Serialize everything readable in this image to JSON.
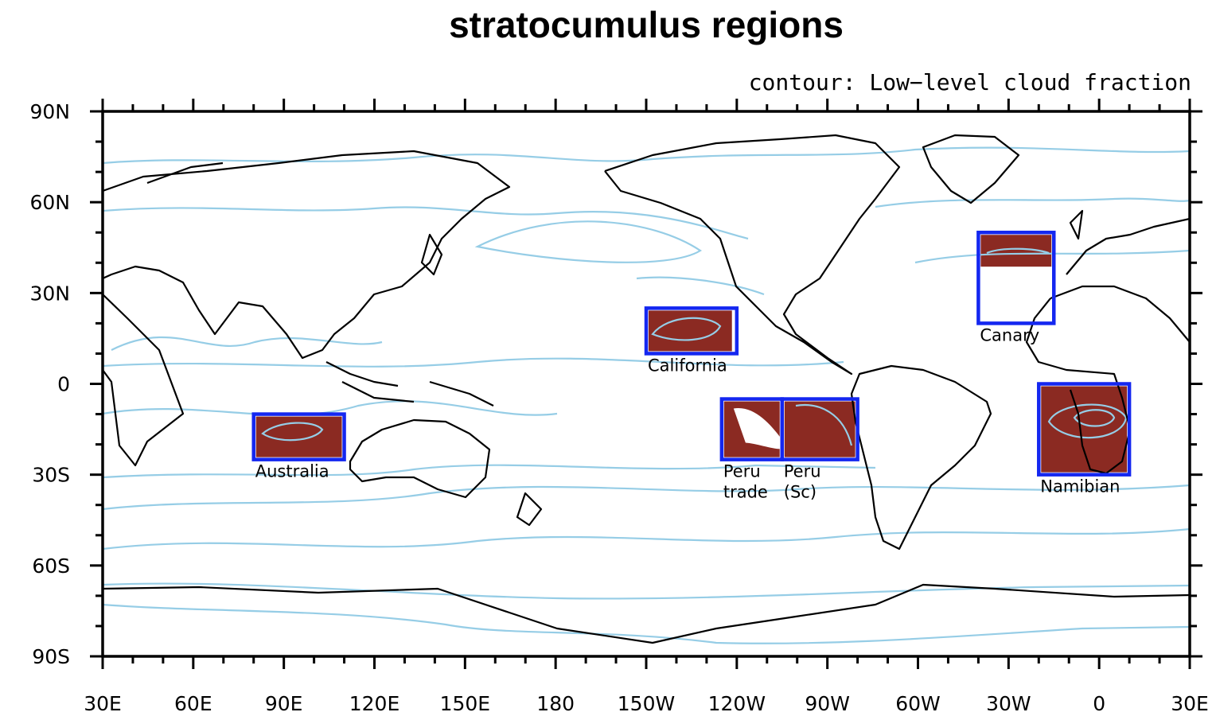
{
  "title": "stratocumulus regions",
  "subtitle": "contour: Low−level cloud fraction",
  "colors": {
    "box": "#1427f0",
    "shading": "#8b2a22",
    "contour": "#96cde6",
    "coast": "#000000"
  },
  "axes": {
    "lon_range": [
      30,
      390
    ],
    "lat_range": [
      -90,
      90
    ],
    "x_ticks": [
      {
        "lon": 30,
        "label": "30E"
      },
      {
        "lon": 60,
        "label": "60E"
      },
      {
        "lon": 90,
        "label": "90E"
      },
      {
        "lon": 120,
        "label": "120E"
      },
      {
        "lon": 150,
        "label": "150E"
      },
      {
        "lon": 180,
        "label": "180"
      },
      {
        "lon": 210,
        "label": "150W"
      },
      {
        "lon": 240,
        "label": "120W"
      },
      {
        "lon": 270,
        "label": "90W"
      },
      {
        "lon": 300,
        "label": "60W"
      },
      {
        "lon": 330,
        "label": "30W"
      },
      {
        "lon": 360,
        "label": "0"
      },
      {
        "lon": 390,
        "label": "30E"
      }
    ],
    "y_ticks": [
      {
        "lat": 90,
        "label": "90N"
      },
      {
        "lat": 60,
        "label": "60N"
      },
      {
        "lat": 30,
        "label": "30N"
      },
      {
        "lat": 0,
        "label": "0"
      },
      {
        "lat": -30,
        "label": "30S"
      },
      {
        "lat": -60,
        "label": "60S"
      },
      {
        "lat": -90,
        "label": "90S"
      }
    ]
  },
  "regions": [
    {
      "name": "Australia",
      "label_lines": [
        "Australia"
      ],
      "lon": [
        80,
        110
      ],
      "lat": [
        -25,
        -10
      ]
    },
    {
      "name": "California",
      "label_lines": [
        "California"
      ],
      "lon": [
        210,
        240
      ],
      "lat": [
        10,
        25
      ]
    },
    {
      "name": "Peru trade",
      "label_lines": [
        "Peru",
        "trade"
      ],
      "lon": [
        235,
        255
      ],
      "lat": [
        -25,
        -5
      ]
    },
    {
      "name": "Peru (Sc)",
      "label_lines": [
        "Peru",
        "(Sc)"
      ],
      "lon": [
        255,
        280
      ],
      "lat": [
        -25,
        -5
      ]
    },
    {
      "name": "Canary",
      "label_lines": [
        "Canary"
      ],
      "lon": [
        320,
        345
      ],
      "lat": [
        20,
        50
      ]
    },
    {
      "name": "Namibian",
      "label_lines": [
        "Namibian"
      ],
      "lon": [
        340,
        370
      ],
      "lat": [
        -30,
        0
      ]
    }
  ]
}
